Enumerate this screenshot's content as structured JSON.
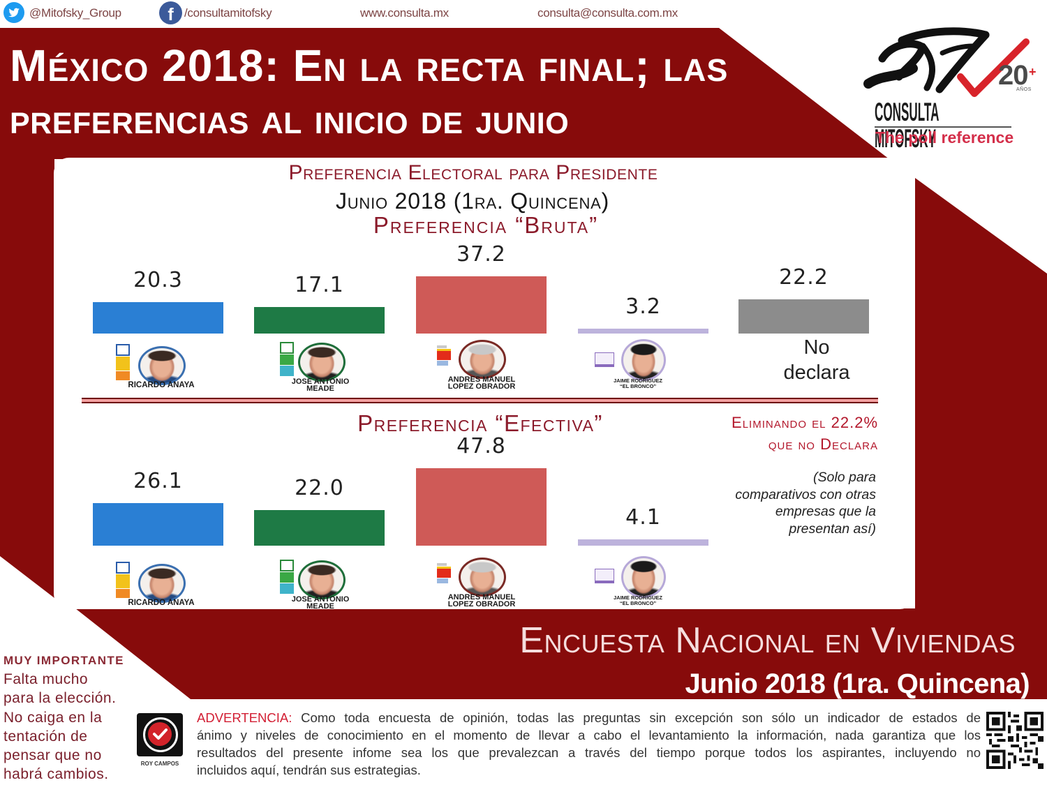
{
  "topbar": {
    "twitter": "@Mitofsky_Group",
    "facebook": "/consultamitofsky",
    "website": "www.consulta.mx",
    "email": "consulta@consulta.com.mx"
  },
  "header": {
    "title_line1": "México 2018: En la recta final; las",
    "title_line2": "preferencias al inicio de junio"
  },
  "logo": {
    "brand": "CONSULTA MITOFSKY",
    "tagline": "The poll reference",
    "anniversary": "20",
    "anniversary_plus": "+",
    "anniversary_label": "AÑOS"
  },
  "panel": {
    "title": "Preferencia Electoral para Presidente",
    "period": "Junio 2018 (1ra. Quincena)",
    "bruta_title": "Preferencia “Bruta”",
    "efectiva_title": "Preferencia “Efectiva”",
    "no_declara_lines": [
      "No",
      "declara"
    ],
    "note_title_lines": [
      "Eliminando el 22.2%",
      "que no Declara"
    ],
    "note_lines": [
      "(Solo para",
      "comparativos con otras",
      "empresas que la",
      "presentan así)"
    ]
  },
  "candidates": [
    {
      "name_lines": [
        "RICARDO ANAYA"
      ],
      "ring_color": "#3a6fb0"
    },
    {
      "name_lines": [
        "JOSE ANTONIO",
        "MEADE"
      ],
      "ring_color": "#1e6e3a"
    },
    {
      "name_lines": [
        "ANDRES MANUEL",
        "LOPEZ OBRADOR"
      ],
      "ring_color": "#7a2a25"
    },
    {
      "name_lines": [
        "JAIME RODRIGUEZ",
        "“EL BRONCO”"
      ],
      "ring_color": "#b6a8d8"
    }
  ],
  "chart_data": [
    {
      "type": "bar",
      "title": "Preferencia Electoral para Presidente",
      "subtitle": "Junio 2018 (1ra. Quincena) — Preferencia “Bruta”",
      "categories": [
        "Ricardo Anaya",
        "José Antonio Meade",
        "Andrés Manuel López Obrador",
        "Jaime Rodríguez “El Bronco”",
        "No declara"
      ],
      "values": [
        20.3,
        17.1,
        37.2,
        3.2,
        22.2
      ],
      "value_labels": [
        "20.3",
        "17.1",
        "37.2",
        "3.2",
        "22.2"
      ],
      "colors": [
        "#2a7fd4",
        "#1e7a45",
        "#cf5a57",
        "#bdb3dc",
        "#8c8c8c"
      ],
      "unit": "%",
      "xlabel": "",
      "ylabel": "",
      "grid": false,
      "legend": "none"
    },
    {
      "type": "bar",
      "title": "Preferencia “Efectiva”",
      "subtitle": "Eliminando el 22.2% que no declara (Solo para comparativos con otras empresas que la presentan así)",
      "categories": [
        "Ricardo Anaya",
        "José Antonio Meade",
        "Andrés Manuel López Obrador",
        "Jaime Rodríguez “El Bronco”"
      ],
      "values": [
        26.1,
        22.0,
        47.8,
        4.1
      ],
      "value_labels": [
        "26.1",
        "22.0",
        "47.8",
        "4.1"
      ],
      "colors": [
        "#2a7fd4",
        "#1e7a45",
        "#cf5a57",
        "#bdb3dc"
      ],
      "unit": "%",
      "xlabel": "",
      "ylabel": "",
      "grid": false,
      "legend": "none"
    }
  ],
  "footer": {
    "survey_title": "Encuesta Nacional en Viviendas",
    "survey_period": "Junio 2018 (1ra. Quincena)",
    "important_label": "MUY IMPORTANTE",
    "important_lines": [
      "Falta mucho",
      "para la elección.",
      "No caiga en la",
      "tentación de",
      "pensar que no",
      "habrá cambios."
    ],
    "roy_campos_label": "ROY CAMPOS",
    "advertencia_label": "ADVERTENCIA:",
    "advertencia_lines": [
      " Como toda encuesta de opinión, todas las preguntas sin excepción son sólo un indicador de estados de",
      "ánimo y niveles de conocimiento en el momento de llevar a cabo el levantamiento la información, nada garantiza que los",
      "resultados del presente infome sea los que prevalezcan a través del tiempo porque todos los aspirantes, incluyendo no",
      "incluidos aquí, tendrán sus estrategias."
    ]
  },
  "colors": {
    "brand_red": "#870b0b",
    "title_red": "#8b1a2a",
    "advertencia_red": "#d21e33",
    "tagline_red": "#d42f4a"
  }
}
